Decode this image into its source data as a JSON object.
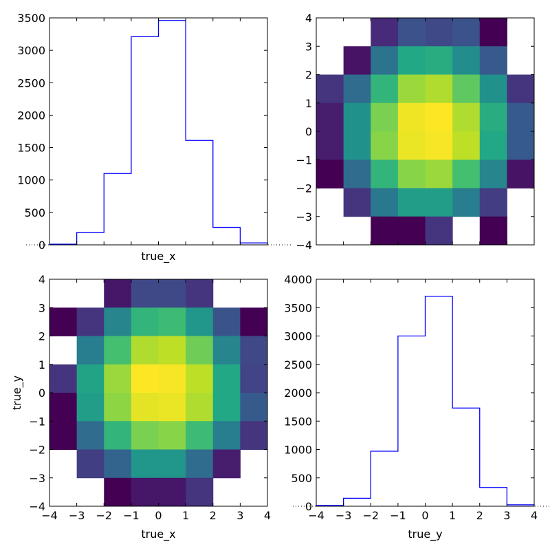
{
  "chart_data": [
    {
      "panel": "top-left",
      "type": "histogram",
      "title": "",
      "xlabel": "true_x",
      "ylabel": "",
      "bin_edges": [
        -4,
        -3,
        -2,
        -1,
        0,
        1,
        2,
        3,
        4
      ],
      "counts": [
        10,
        190,
        1100,
        3210,
        3460,
        1610,
        270,
        30
      ],
      "xlim": [
        -4,
        4
      ],
      "ylim": [
        0,
        3500
      ],
      "y_ticks": [
        "0",
        "500",
        "1000",
        "1500",
        "2000",
        "2500",
        "3000",
        "3500"
      ],
      "x_ticks": [],
      "line_color": "#0000ff",
      "grid": false
    },
    {
      "panel": "top-right",
      "type": "heatmap",
      "title": "",
      "xlabel": "",
      "ylabel": "",
      "x_edges": [
        -4,
        -3,
        -2,
        -1,
        0,
        1,
        2,
        3,
        4
      ],
      "y_edges": [
        -4,
        -3,
        -2,
        -1,
        0,
        1,
        2,
        3,
        4
      ],
      "z_rows_top_to_bottom": [
        [
          null,
          null,
          0.12,
          0.25,
          0.22,
          0.25,
          0.0,
          null
        ],
        [
          null,
          0.05,
          0.38,
          0.6,
          0.62,
          0.48,
          0.28,
          null
        ],
        [
          0.15,
          0.35,
          0.65,
          0.85,
          0.88,
          0.75,
          0.5,
          0.15
        ],
        [
          0.08,
          0.5,
          0.8,
          0.98,
          1.0,
          0.88,
          0.62,
          0.28
        ],
        [
          0.08,
          0.5,
          0.82,
          0.97,
          0.99,
          0.9,
          0.6,
          0.28
        ],
        [
          0.0,
          0.35,
          0.65,
          0.82,
          0.85,
          0.7,
          0.45,
          0.05
        ],
        [
          null,
          0.15,
          0.4,
          0.55,
          0.55,
          0.42,
          0.18,
          null
        ],
        [
          null,
          null,
          0.0,
          0.0,
          0.15,
          null,
          0.0,
          null
        ]
      ],
      "xlim": [
        -4,
        4
      ],
      "ylim": [
        -4,
        4
      ],
      "y_ticks": [
        "−4",
        "−3",
        "−2",
        "−1",
        "0",
        "1",
        "2",
        "3",
        "4"
      ],
      "x_ticks": [],
      "colormap": "viridis",
      "grid": false
    },
    {
      "panel": "bottom-left",
      "type": "heatmap",
      "title": "",
      "xlabel": "true_x",
      "ylabel": "true_y",
      "x_edges": [
        -4,
        -3,
        -2,
        -1,
        0,
        1,
        2,
        3,
        4
      ],
      "y_edges": [
        -4,
        -3,
        -2,
        -1,
        0,
        1,
        2,
        3,
        4
      ],
      "z_rows_top_to_bottom": [
        [
          null,
          null,
          0.06,
          0.22,
          0.22,
          0.15,
          null,
          null
        ],
        [
          0.0,
          0.15,
          0.45,
          0.65,
          0.68,
          0.52,
          0.26,
          0.0
        ],
        [
          null,
          0.42,
          0.7,
          0.88,
          0.9,
          0.78,
          0.45,
          0.22
        ],
        [
          0.15,
          0.58,
          0.85,
          1.0,
          0.99,
          0.9,
          0.6,
          0.2
        ],
        [
          0.0,
          0.55,
          0.83,
          0.96,
          0.97,
          0.88,
          0.6,
          0.28
        ],
        [
          0.0,
          0.35,
          0.65,
          0.8,
          0.82,
          0.68,
          0.42,
          0.15
        ],
        [
          null,
          0.18,
          0.32,
          0.52,
          0.52,
          0.35,
          0.08,
          null
        ],
        [
          null,
          null,
          0.0,
          0.06,
          0.06,
          0.15,
          null,
          null
        ]
      ],
      "xlim": [
        -4,
        4
      ],
      "ylim": [
        -4,
        4
      ],
      "x_ticks": [
        "−4",
        "−3",
        "−2",
        "−1",
        "0",
        "1",
        "2",
        "3",
        "4"
      ],
      "y_ticks": [
        "−4",
        "−3",
        "−2",
        "−1",
        "0",
        "1",
        "2",
        "3",
        "4"
      ],
      "colormap": "viridis",
      "grid": false
    },
    {
      "panel": "bottom-right",
      "type": "histogram",
      "title": "",
      "xlabel": "true_y",
      "ylabel": "",
      "bin_edges": [
        -4,
        -3,
        -2,
        -1,
        0,
        1,
        2,
        3,
        4
      ],
      "counts": [
        15,
        140,
        970,
        3000,
        3700,
        1730,
        330,
        25
      ],
      "xlim": [
        -4,
        4
      ],
      "ylim": [
        0,
        4000
      ],
      "x_ticks": [
        "−4",
        "−3",
        "−2",
        "−1",
        "0",
        "1",
        "2",
        "3",
        "4"
      ],
      "y_ticks": [
        "0",
        "500",
        "1000",
        "1500",
        "2000",
        "2500",
        "3000",
        "3500",
        "4000"
      ],
      "line_color": "#0000ff",
      "grid": false
    }
  ]
}
